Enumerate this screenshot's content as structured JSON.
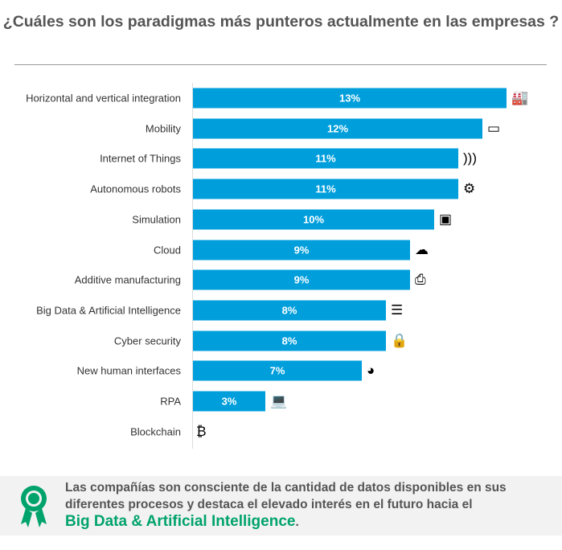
{
  "title": "¿Cuáles son los paradigmas más punteros actualmente en las empresas ?",
  "chart_data": {
    "type": "bar",
    "orientation": "horizontal",
    "title": "¿Cuáles son los paradigmas más punteros actualmente en las empresas ?",
    "categories": [
      "Horizontal  and vertical integration",
      "Mobility",
      "Internet of Things",
      "Autonomous robots",
      "Simulation",
      "Cloud",
      "Additive manufacturing",
      "Big Data & Artificial Intelligence",
      "Cyber security",
      "New human interfaces",
      "RPA",
      "Blockchain"
    ],
    "values": [
      13,
      12,
      11,
      11,
      10,
      9,
      9,
      8,
      8,
      7,
      3,
      0
    ],
    "data_labels": [
      "13%",
      "12%",
      "11%",
      "11%",
      "10%",
      "9%",
      "9%",
      "8%",
      "8%",
      "7%",
      "3%",
      ""
    ],
    "icons": [
      "factory-icon",
      "mobile-devices-icon",
      "wifi-signal-icon",
      "robot-arm-icon",
      "simulation-icon",
      "cloud-icon",
      "3d-printer-icon",
      "data-tray-icon",
      "lock-icon",
      "vr-headset-icon",
      "laptop-icon",
      "bitcoin-icon"
    ],
    "bar_color": "#009fdc",
    "grid": false
  },
  "footer": {
    "text": "Las compañías son consciente de la cantidad de datos disponibles en sus diferentes procesos y destaca el elevado interés en el futuro hacia el",
    "highlight": "Big Data & Artificial Intelligence",
    "end": ".",
    "highlight_color": "#00a36c",
    "icon": "award-ribbon-icon"
  }
}
